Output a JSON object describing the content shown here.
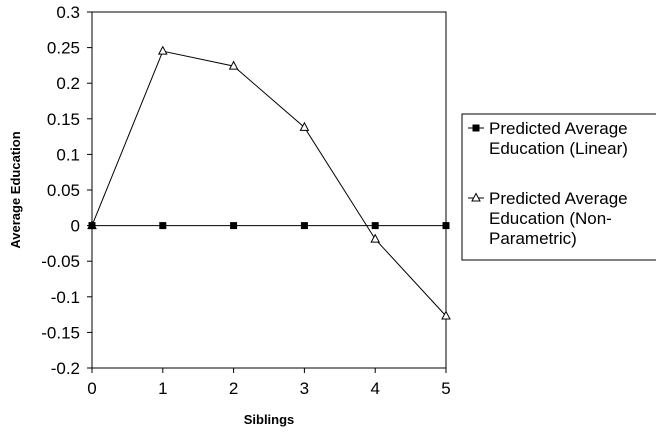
{
  "chart_data": {
    "type": "line",
    "title": "",
    "xlabel": "Siblings",
    "ylabel": "Average Education",
    "x": [
      0,
      1,
      2,
      3,
      4,
      5
    ],
    "xlim": [
      0,
      5
    ],
    "ylim": [
      -0.2,
      0.3
    ],
    "x_ticks": [
      "0",
      "1",
      "2",
      "3",
      "4",
      "5"
    ],
    "y_ticks": [
      "0.3",
      "0.25",
      "0.2",
      "0.15",
      "0.1",
      "0.05",
      "0",
      "-0.05",
      "-0.1",
      "-0.15",
      "-0.2"
    ],
    "grid": false,
    "legend_position": "right",
    "series": [
      {
        "name": "Predicted Average Education (Linear)",
        "legend_lines": [
          "Predicted Average",
          "Education (Linear)"
        ],
        "marker": "square-filled",
        "color": "#000000",
        "values": [
          0,
          0,
          0,
          0,
          0,
          0
        ]
      },
      {
        "name": "Predicted Average Education (Non-Parametric)",
        "legend_lines": [
          "Predicted Average",
          "Education (Non-",
          "Parametric)"
        ],
        "marker": "triangle-open",
        "color": "#000000",
        "values": [
          0,
          0.245,
          0.224,
          0.138,
          -0.019,
          -0.127
        ]
      }
    ]
  }
}
